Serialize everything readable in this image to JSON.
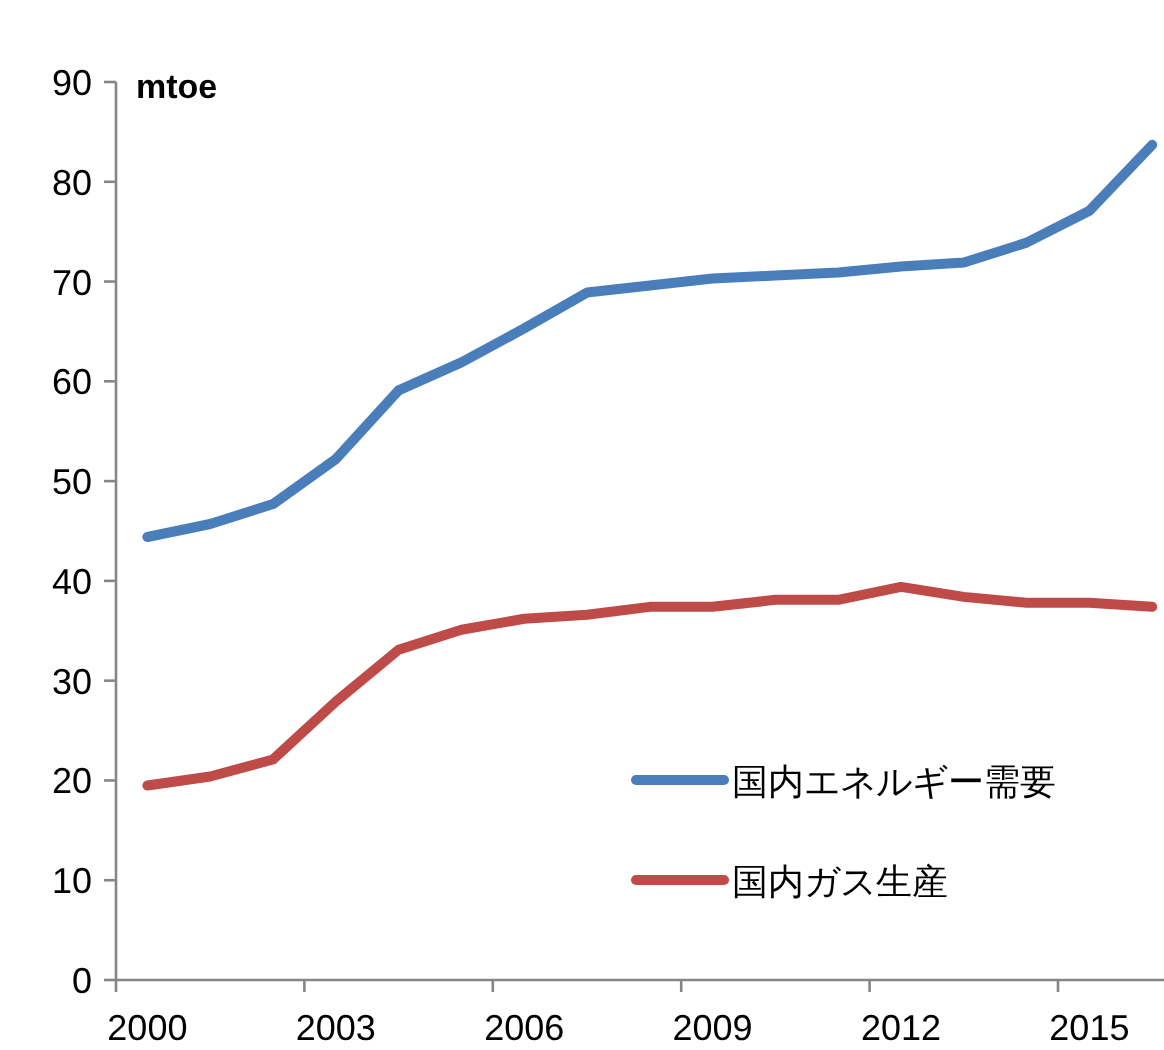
{
  "chart_data": {
    "type": "line",
    "ylabel": "mtoe",
    "categories": [
      "2000",
      null,
      null,
      "2003",
      null,
      null,
      "2006",
      null,
      null,
      "2009",
      null,
      null,
      "2012",
      null,
      null,
      "2015",
      null
    ],
    "series": [
      {
        "name": "国内エネルギー需要",
        "color": "#4a7ebb",
        "values": [
          44.4,
          45.7,
          47.7,
          52.2,
          59.1,
          61.9,
          65.3,
          68.9,
          69.6,
          70.3,
          70.6,
          70.9,
          71.5,
          71.9,
          73.9,
          77.1,
          83.7
        ]
      },
      {
        "name": "国内ガス生産",
        "color": "#be4b48",
        "values": [
          19.5,
          20.4,
          22.1,
          27.9,
          33.1,
          35.1,
          36.2,
          36.6,
          37.4,
          37.4,
          38.1,
          38.1,
          39.4,
          38.4,
          37.8,
          37.8,
          37.4
        ]
      }
    ],
    "ylim": [
      0,
      90
    ],
    "yticks": [
      0,
      10,
      20,
      30,
      40,
      50,
      60,
      70,
      80,
      90
    ],
    "legend": "bottom right"
  }
}
